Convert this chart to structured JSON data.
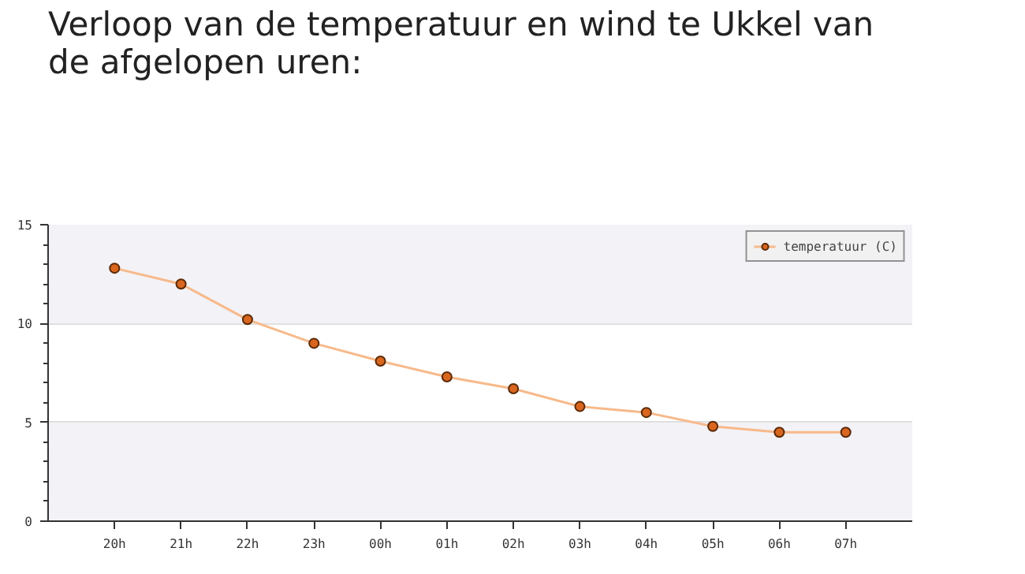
{
  "chart_data": {
    "type": "line",
    "title": "Verloop van de temperatuur en wind te Ukkel van de afgelopen uren:",
    "categories": [
      "20h",
      "21h",
      "22h",
      "23h",
      "00h",
      "01h",
      "02h",
      "03h",
      "04h",
      "05h",
      "06h",
      "07h"
    ],
    "series": [
      {
        "name": "temperatuur (C)",
        "color": "#d9661f",
        "values": [
          12.8,
          12.0,
          10.2,
          9.0,
          8.1,
          7.3,
          6.7,
          5.8,
          5.5,
          4.8,
          4.5,
          4.5
        ]
      }
    ],
    "bands": [
      {
        "axis": "y",
        "from": 0,
        "to": 5,
        "color": "#f3f2f6"
      },
      {
        "axis": "y",
        "from": 10,
        "to": 15,
        "color": "#f3f2f6"
      }
    ],
    "ylim": [
      0,
      15
    ],
    "yticks": [
      0,
      5,
      10,
      15
    ],
    "grid": "y",
    "legend": "top right",
    "marker": "circle"
  }
}
